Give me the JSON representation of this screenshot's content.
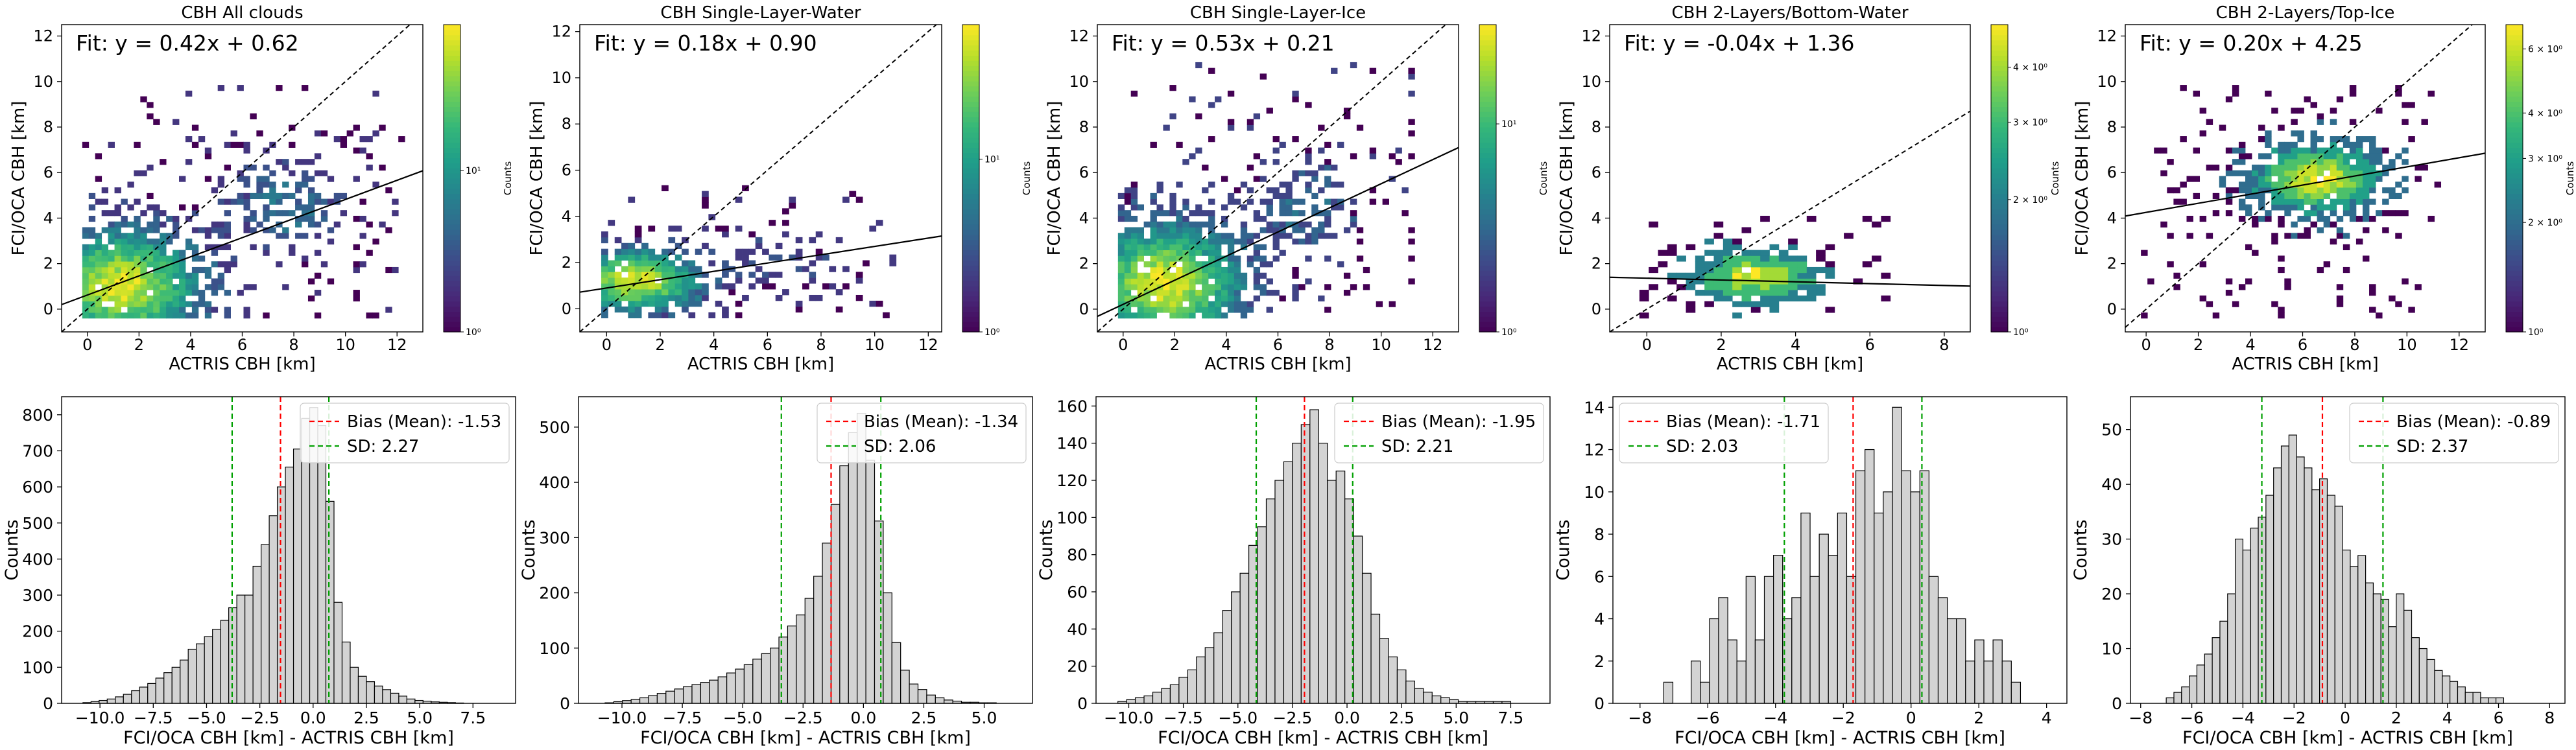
{
  "figure": {
    "colorbar_label": "Counts",
    "colors": {
      "hist_fill": "#d3d3d3",
      "hist_edge": "#000000",
      "bias_line": "#ff0000",
      "sd_line": "#00a000",
      "colormap": [
        "#440154",
        "#482878",
        "#3e4989",
        "#31688e",
        "#26828e",
        "#1f9e89",
        "#35b779",
        "#6ece58",
        "#b5de2b",
        "#fde725"
      ]
    }
  },
  "chart_data": [
    {
      "type": "heatmap",
      "title": "CBH All clouds",
      "xlabel": "ACTRIS CBH [km]",
      "ylabel": "FCI/OCA CBH [km]",
      "xlim": [
        -1,
        13
      ],
      "ylim": [
        -1,
        12.5
      ],
      "xticks": [
        0,
        2,
        4,
        6,
        8,
        10,
        12
      ],
      "yticks": [
        0,
        2,
        4,
        6,
        8,
        10,
        12
      ],
      "fit_label": "Fit: y = 0.42x + 0.62",
      "fit": {
        "slope": 0.42,
        "intercept": 0.62
      },
      "one_to_one_line": true,
      "colorbar": {
        "scale": "log",
        "ticks": [
          {
            "value": 1,
            "label": "10⁰"
          },
          {
            "value": 10,
            "label": "10¹"
          }
        ],
        "max": 80
      },
      "density": {
        "cx": 1.2,
        "cy": 0.9,
        "sx": 3.0,
        "sy": 2.4,
        "spread_x": 12,
        "spread_y": 9.5,
        "extra": [
          {
            "cx": 7.5,
            "cy": 4.5,
            "sx": 2.2,
            "sy": 2.0,
            "w": 0.35
          }
        ]
      }
    },
    {
      "type": "heatmap",
      "title": "CBH Single-Layer-Water",
      "xlabel": "ACTRIS CBH [km]",
      "ylabel": "FCI/OCA CBH [km]",
      "xlim": [
        -1,
        12.5
      ],
      "ylim": [
        -1,
        12.3
      ],
      "xticks": [
        0,
        2,
        4,
        6,
        8,
        10,
        12
      ],
      "yticks": [
        0,
        2,
        4,
        6,
        8,
        10,
        12
      ],
      "fit_label": "Fit: y = 0.18x + 0.90",
      "fit": {
        "slope": 0.18,
        "intercept": 0.9
      },
      "one_to_one_line": true,
      "colorbar": {
        "scale": "log",
        "ticks": [
          {
            "value": 1,
            "label": "10⁰"
          },
          {
            "value": 10,
            "label": "10¹"
          }
        ],
        "max": 60
      },
      "density": {
        "cx": 1.0,
        "cy": 1.1,
        "sx": 2.4,
        "sy": 1.3,
        "spread_x": 10.5,
        "spread_y": 5.0,
        "extra": [
          {
            "cx": 6.5,
            "cy": 2.0,
            "sx": 1.8,
            "sy": 1.2,
            "w": 0.15
          }
        ]
      }
    },
    {
      "type": "heatmap",
      "title": "CBH Single-Layer-Ice",
      "xlabel": "ACTRIS CBH [km]",
      "ylabel": "FCI/OCA CBH [km]",
      "xlim": [
        -1,
        13
      ],
      "ylim": [
        -1,
        12.5
      ],
      "xticks": [
        0,
        2,
        4,
        6,
        8,
        10,
        12
      ],
      "yticks": [
        0,
        2,
        4,
        6,
        8,
        10,
        12
      ],
      "fit_label": "Fit: y = 0.53x + 0.21",
      "fit": {
        "slope": 0.53,
        "intercept": 0.21
      },
      "one_to_one_line": true,
      "colorbar": {
        "scale": "log",
        "ticks": [
          {
            "value": 1,
            "label": "10⁰"
          },
          {
            "value": 10,
            "label": "10¹"
          }
        ],
        "max": 30
      },
      "density": {
        "cx": 1.5,
        "cy": 1.0,
        "sx": 3.0,
        "sy": 2.6,
        "spread_x": 11,
        "spread_y": 10.5,
        "extra": [
          {
            "cx": 7.0,
            "cy": 4.5,
            "sx": 2.0,
            "sy": 2.0,
            "w": 0.3
          }
        ]
      }
    },
    {
      "type": "heatmap",
      "title": "CBH 2-Layers/Bottom-Water",
      "xlabel": "ACTRIS CBH [km]",
      "ylabel": "FCI/OCA CBH [km]",
      "xlim": [
        -1,
        8.7
      ],
      "ylim": [
        -1,
        12.5
      ],
      "xticks": [
        0,
        2,
        4,
        6,
        8
      ],
      "yticks": [
        0,
        2,
        4,
        6,
        8,
        10,
        12
      ],
      "fit_label": "Fit: y = -0.04x + 1.36",
      "fit": {
        "slope": -0.04,
        "intercept": 1.36
      },
      "one_to_one_line": true,
      "colorbar": {
        "scale": "log",
        "ticks": [
          {
            "value": 1,
            "label": "10⁰"
          },
          {
            "value": 2,
            "label": "2 × 10⁰"
          },
          {
            "value": 3,
            "label": "3 × 10⁰"
          },
          {
            "value": 4,
            "label": "4 × 10⁰"
          }
        ],
        "max": 5
      },
      "density": {
        "cx": 2.8,
        "cy": 1.3,
        "sx": 1.8,
        "sy": 1.2,
        "spread_x": 6.5,
        "spread_y": 3.8,
        "extra": []
      }
    },
    {
      "type": "heatmap",
      "title": "CBH 2-Layers/Top-Ice",
      "xlabel": "ACTRIS CBH [km]",
      "ylabel": "FCI/OCA CBH [km]",
      "xlim": [
        -0.8,
        13
      ],
      "ylim": [
        -1,
        12.5
      ],
      "xticks": [
        0,
        2,
        4,
        6,
        8,
        10,
        12
      ],
      "yticks": [
        0,
        2,
        4,
        6,
        8,
        10,
        12
      ],
      "fit_label": "Fit: y = 0.20x + 4.25",
      "fit": {
        "slope": 0.2,
        "intercept": 4.25
      },
      "one_to_one_line": true,
      "colorbar": {
        "scale": "log",
        "ticks": [
          {
            "value": 1,
            "label": "10⁰"
          },
          {
            "value": 2,
            "label": "2 × 10⁰"
          },
          {
            "value": 3,
            "label": "3 × 10⁰"
          },
          {
            "value": 4,
            "label": "4 × 10⁰"
          },
          {
            "value": 6,
            "label": "6 × 10⁰"
          }
        ],
        "max": 7
      },
      "density": {
        "cx": 6.5,
        "cy": 5.6,
        "sx": 2.6,
        "sy": 1.6,
        "spread_x": 11,
        "spread_y": 9.5,
        "extra": []
      }
    },
    {
      "type": "bar",
      "subtype": "histogram",
      "xlabel": "FCI/OCA CBH [km] - ACTRIS CBH [km]",
      "ylabel": "Counts",
      "xlim": [
        -11.8,
        9.5
      ],
      "ylim": [
        0,
        850
      ],
      "xticks": [
        -10,
        -7.5,
        -5,
        -2.5,
        0,
        2.5,
        5,
        7.5
      ],
      "xtick_labels": [
        "−10.0",
        "−7.5",
        "−5.0",
        "−2.5",
        "0.0",
        "2.5",
        "5.0",
        "7.5"
      ],
      "yticks": [
        0,
        100,
        200,
        300,
        400,
        500,
        600,
        700,
        800
      ],
      "bin_start": -10.8,
      "bin_width": 0.38,
      "values": [
        2,
        5,
        8,
        12,
        18,
        25,
        35,
        45,
        55,
        70,
        85,
        100,
        120,
        150,
        165,
        185,
        205,
        230,
        265,
        300,
        300,
        380,
        440,
        520,
        600,
        655,
        705,
        790,
        820,
        770,
        560,
        280,
        170,
        100,
        75,
        60,
        48,
        38,
        28,
        20,
        12,
        8,
        6,
        4,
        3,
        2,
        1
      ],
      "bias_mean": -1.53,
      "sd": 2.27,
      "legend": [
        "Bias (Mean): -1.53",
        "SD: 2.27"
      ]
    },
    {
      "type": "bar",
      "subtype": "histogram",
      "xlabel": "FCI/OCA CBH [km] - ACTRIS CBH [km]",
      "ylabel": "Counts",
      "xlim": [
        -11.8,
        7.0
      ],
      "ylim": [
        0,
        555
      ],
      "xticks": [
        -10,
        -7.5,
        -5,
        -2.5,
        0,
        2.5,
        5
      ],
      "xtick_labels": [
        "−10.0",
        "−7.5",
        "−5.0",
        "−2.5",
        "0.0",
        "2.5",
        "5.0"
      ],
      "yticks": [
        0,
        100,
        200,
        300,
        400,
        500
      ],
      "bin_start": -10.7,
      "bin_width": 0.36,
      "values": [
        1,
        3,
        5,
        7,
        10,
        14,
        18,
        22,
        26,
        30,
        34,
        38,
        42,
        48,
        55,
        62,
        70,
        80,
        90,
        100,
        120,
        140,
        160,
        190,
        230,
        290,
        360,
        430,
        490,
        525,
        440,
        330,
        200,
        110,
        60,
        35,
        25,
        15,
        10,
        6,
        4,
        2,
        2,
        1,
        1
      ],
      "bias_mean": -1.34,
      "sd": 2.06,
      "legend": [
        "Bias (Mean): -1.34",
        "SD: 2.06"
      ]
    },
    {
      "type": "bar",
      "subtype": "histogram",
      "xlabel": "FCI/OCA CBH [km] - ACTRIS CBH [km]",
      "ylabel": "Counts",
      "xlim": [
        -11.5,
        9.3
      ],
      "ylim": [
        0,
        165
      ],
      "xticks": [
        -10,
        -7.5,
        -5,
        -2.5,
        0,
        2.5,
        5,
        7.5
      ],
      "xtick_labels": [
        "−10.0",
        "−7.5",
        "−5.0",
        "−2.5",
        "0.0",
        "2.5",
        "5.0",
        "7.5"
      ],
      "yticks": [
        0,
        20,
        40,
        60,
        80,
        100,
        120,
        140,
        160
      ],
      "bin_start": -10.5,
      "bin_width": 0.4,
      "values": [
        1,
        2,
        3,
        4,
        6,
        8,
        10,
        14,
        18,
        25,
        30,
        38,
        50,
        60,
        70,
        85,
        95,
        110,
        120,
        130,
        140,
        150,
        158,
        140,
        120,
        125,
        110,
        90,
        70,
        48,
        35,
        25,
        18,
        12,
        8,
        6,
        4,
        3,
        2,
        1,
        1,
        1,
        1,
        1,
        1
      ],
      "bias_mean": -1.95,
      "sd": 2.21,
      "legend": [
        "Bias (Mean): -1.95",
        "SD: 2.21"
      ]
    },
    {
      "type": "bar",
      "subtype": "histogram",
      "xlabel": "FCI/OCA CBH [km] - ACTRIS CBH [km]",
      "ylabel": "Counts",
      "xlim": [
        -8.8,
        4.6
      ],
      "ylim": [
        0,
        14.5
      ],
      "xticks": [
        -8,
        -6,
        -4,
        -2,
        0,
        2,
        4
      ],
      "xtick_labels": [
        "−8",
        "−6",
        "−4",
        "−2",
        "0",
        "2",
        "4"
      ],
      "yticks": [
        0,
        2,
        4,
        6,
        8,
        10,
        12,
        14
      ],
      "bin_start": -7.3,
      "bin_width": 0.27,
      "values": [
        1,
        0,
        0,
        2,
        1,
        4,
        5,
        3,
        2,
        6,
        3,
        6,
        7,
        4,
        5,
        9,
        6,
        8,
        7,
        9,
        6,
        11,
        12,
        9,
        10,
        14,
        11,
        10,
        11,
        6,
        5,
        4,
        4,
        2,
        3,
        2,
        3,
        2,
        1
      ],
      "bias_mean": -1.71,
      "sd": 2.03,
      "legend": [
        "Bias (Mean): -1.71",
        "SD: 2.03"
      ]
    },
    {
      "type": "bar",
      "subtype": "histogram",
      "xlabel": "FCI/OCA CBH [km] - ACTRIS CBH [km]",
      "ylabel": "Counts",
      "xlim": [
        -8.4,
        8.6
      ],
      "ylim": [
        0,
        56
      ],
      "xticks": [
        -8,
        -6,
        -4,
        -2,
        0,
        2,
        4,
        6,
        8
      ],
      "xtick_labels": [
        "−8",
        "−6",
        "−4",
        "−2",
        "0",
        "2",
        "4",
        "6",
        "8"
      ],
      "yticks": [
        0,
        10,
        20,
        30,
        40,
        50
      ],
      "bin_start": -7.0,
      "bin_width": 0.3,
      "values": [
        1,
        2,
        3,
        5,
        7,
        9,
        12,
        15,
        20,
        30,
        28,
        32,
        34,
        38,
        43,
        47,
        49,
        45,
        43,
        39,
        41,
        38,
        36,
        28,
        25,
        27,
        22,
        20,
        19,
        14,
        20,
        17,
        12,
        10,
        8,
        6,
        5,
        4,
        3,
        2,
        2,
        1,
        1,
        1
      ],
      "bias_mean": -0.89,
      "sd": 2.37,
      "legend": [
        "Bias (Mean): -0.89",
        "SD: 2.37"
      ]
    }
  ]
}
